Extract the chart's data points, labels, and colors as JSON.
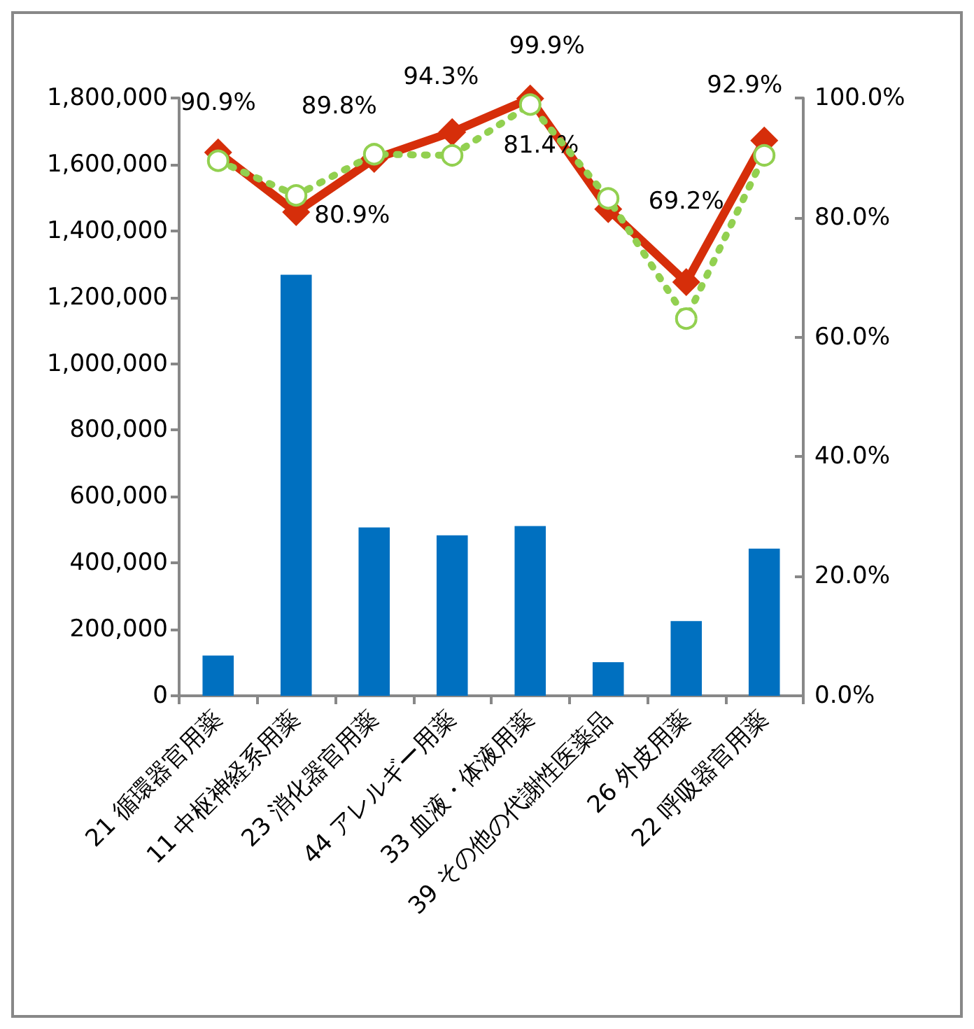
{
  "chart_data": {
    "type": "bar",
    "categories": [
      "21 循環器官用薬",
      "11 中枢神経系用薬",
      "23 消化器官用薬",
      "44 アレルギー用薬",
      "33 血液・体液用薬",
      "39 その他の代謝性医薬品",
      "26 外皮用薬",
      "22 呼吸器官用薬"
    ],
    "series": [
      {
        "color": "#0070c0",
        "values": [
          121000,
          1268000,
          507000,
          483000,
          511000,
          101000,
          225000,
          443000
        ]
      },
      {
        "type": "line",
        "axis": "y2",
        "color": "#92d050",
        "marker": "circle",
        "line_style": "dotted",
        "values": [
          89.5,
          83.7,
          90.6,
          90.4,
          98.9,
          83.2,
          63.1,
          90.4
        ]
      },
      {
        "type": "line",
        "axis": "y2",
        "color": "#d62e0a",
        "marker": "diamond",
        "line_style": "solid",
        "values": [
          90.9,
          80.9,
          89.8,
          94.3,
          99.9,
          81.4,
          69.2,
          92.9
        ],
        "value_labels": [
          "90.9%",
          "80.9%",
          "89.8%",
          "94.3%",
          "99.9%",
          "81.4%",
          "69.2%",
          "92.9%"
        ]
      }
    ],
    "ylim": [
      0,
      1800000
    ],
    "yticks": [
      0,
      {
        "value": 200000,
        "label": "200,000"
      },
      {
        "value": 400000,
        "label": "400,000"
      },
      {
        "value": 600000,
        "label": "600,000"
      },
      {
        "value": 800000,
        "label": "800,000"
      },
      {
        "value": 1000000,
        "label": "1,000,000"
      },
      {
        "value": 1200000,
        "label": "1,200,000"
      },
      {
        "value": 1400000,
        "label": "1,400,000"
      },
      {
        "value": 1600000,
        "label": "1,600,000"
      },
      {
        "value": 1800000,
        "label": "1,800,000"
      }
    ],
    "y2lim": [
      0,
      100
    ],
    "y2ticks": [
      {
        "value": 0,
        "label": "0.0%"
      },
      {
        "value": 20,
        "label": "20.0%"
      },
      {
        "value": 40,
        "label": "40.0%"
      },
      {
        "value": 60,
        "label": "60.0%"
      },
      {
        "value": 80,
        "label": "80.0%"
      },
      {
        "value": 100,
        "label": "100.0%"
      }
    ],
    "grid": false
  }
}
